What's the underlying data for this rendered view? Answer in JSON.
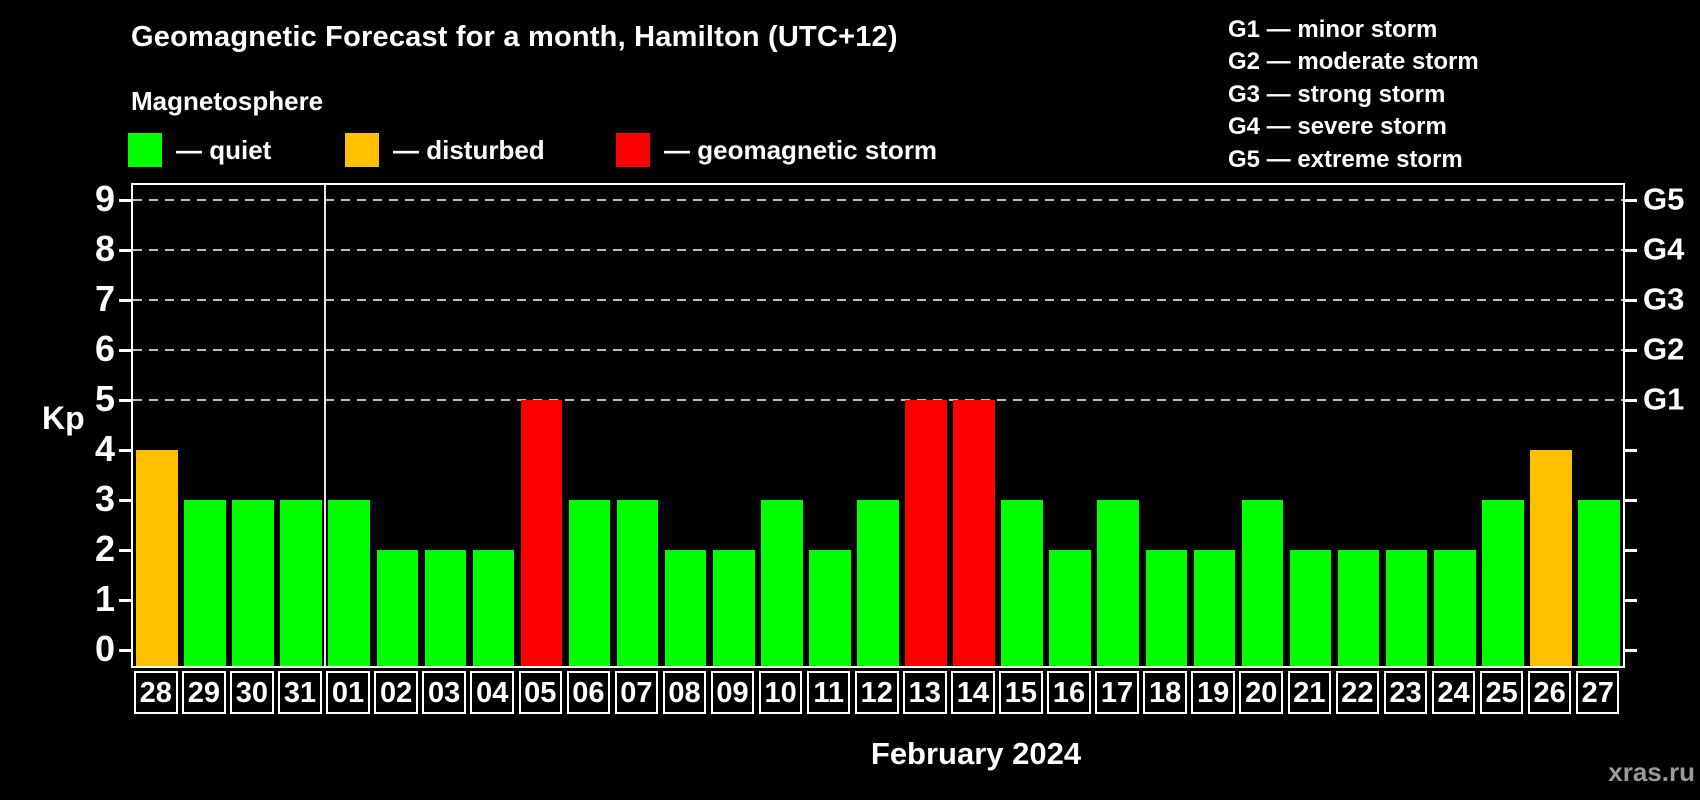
{
  "chart_data": {
    "type": "bar",
    "title": "Geomagnetic Forecast for a month, Hamilton (UTC+12)",
    "subtitle": "Magnetosphere",
    "xlabel": "February 2024",
    "ylabel": "Kp",
    "ylim": [
      0,
      9
    ],
    "yticks": [
      0,
      1,
      2,
      3,
      4,
      5,
      6,
      7,
      8,
      9
    ],
    "gridlines_at": [
      5,
      6,
      7,
      8,
      9
    ],
    "grid": "dashed horizontal lines at Kp 5-9 only",
    "legend_position": "top-left",
    "legend": [
      {
        "label": "— quiet",
        "status": "quiet",
        "color": "#00ff00"
      },
      {
        "label": "— disturbed",
        "status": "disturbed",
        "color": "#ffc000"
      },
      {
        "label": "— geomagnetic storm",
        "status": "storm",
        "color": "#ff0000"
      }
    ],
    "g_scale_legend": [
      "G1 — minor storm",
      "G2 — moderate storm",
      "G3 — strong storm",
      "G4 — severe storm",
      "G5 — extreme storm"
    ],
    "right_axis": [
      {
        "value": 5,
        "label": "G1"
      },
      {
        "value": 6,
        "label": "G2"
      },
      {
        "value": 7,
        "label": "G3"
      },
      {
        "value": 8,
        "label": "G4"
      },
      {
        "value": 9,
        "label": "G5"
      }
    ],
    "categories": [
      "28",
      "29",
      "30",
      "31",
      "01",
      "02",
      "03",
      "04",
      "05",
      "06",
      "07",
      "08",
      "09",
      "10",
      "11",
      "12",
      "13",
      "14",
      "15",
      "16",
      "17",
      "18",
      "19",
      "20",
      "21",
      "22",
      "23",
      "24",
      "25",
      "26",
      "27"
    ],
    "values": [
      4,
      3,
      3,
      3,
      3,
      2,
      2,
      2,
      5,
      3,
      3,
      2,
      2,
      3,
      2,
      3,
      5,
      5,
      3,
      2,
      3,
      2,
      2,
      3,
      2,
      2,
      2,
      2,
      3,
      4,
      3
    ],
    "statuses": [
      "disturbed",
      "quiet",
      "quiet",
      "quiet",
      "quiet",
      "quiet",
      "quiet",
      "quiet",
      "storm",
      "quiet",
      "quiet",
      "quiet",
      "quiet",
      "quiet",
      "quiet",
      "quiet",
      "storm",
      "storm",
      "quiet",
      "quiet",
      "quiet",
      "quiet",
      "quiet",
      "quiet",
      "quiet",
      "quiet",
      "quiet",
      "quiet",
      "quiet",
      "disturbed",
      "quiet"
    ],
    "status_colors": {
      "quiet": "#00ff00",
      "disturbed": "#ffc000",
      "storm": "#ff0000"
    },
    "month_separator_after_index": 3
  },
  "watermark": "xras.ru"
}
